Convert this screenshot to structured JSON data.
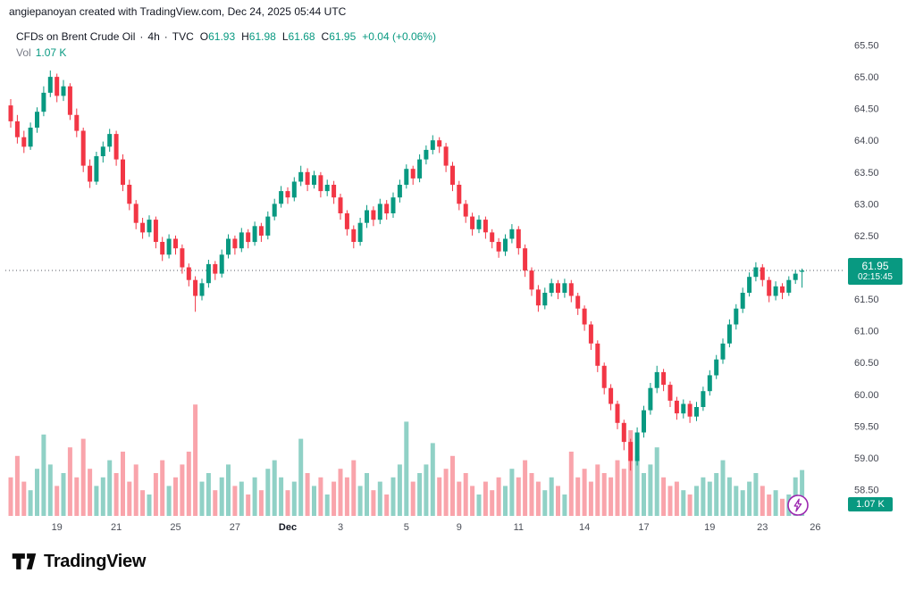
{
  "header": {
    "watermark": "angiepanoyan created with TradingView.com, Dec 24, 2025 05:44 UTC"
  },
  "legend": {
    "symbol": "CFDs on Brent Crude Oil",
    "separator": "·",
    "interval": "4h",
    "exchange": "TVC",
    "ohlc": {
      "o_label": "O",
      "o": "61.93",
      "h_label": "H",
      "h": "61.98",
      "l_label": "L",
      "l": "61.68",
      "c_label": "C",
      "c": "61.95",
      "change": "+0.04 (+0.06%)"
    },
    "vol_label": "Vol",
    "vol_value": "1.07 K"
  },
  "price_badge": {
    "price": "61.95",
    "countdown": "02:15:45"
  },
  "volume_badge": {
    "value": "1.07 K"
  },
  "logo": {
    "text": "TradingView"
  },
  "colors": {
    "up": "#089981",
    "down": "#f23645",
    "vol_up": "rgba(8,153,129,0.45)",
    "vol_down": "rgba(242,54,69,0.45)",
    "badge": "#089981",
    "text_dark": "#131722",
    "text_gray": "#787b86",
    "axis_text": "#434651",
    "accent_purple": "#9c27b0"
  },
  "chart_data": {
    "type": "candlestick",
    "title": "CFDs on Brent Crude Oil · 4h · TVC",
    "symbol": "CFDs on Brent Crude Oil",
    "interval": "4h",
    "exchange": "TVC",
    "last_price": 61.95,
    "ylim": [
      58.5,
      65.5
    ],
    "volume_unit": "K",
    "y_ticks": [
      "65.50",
      "65.00",
      "64.50",
      "64.00",
      "63.50",
      "63.00",
      "62.50",
      "62.00",
      "61.50",
      "61.00",
      "60.50",
      "60.00",
      "59.50",
      "59.00",
      "58.50"
    ],
    "x_ticks": [
      [
        "19",
        7
      ],
      [
        "21",
        16
      ],
      [
        "25",
        25
      ],
      [
        "27",
        34
      ],
      [
        "Dec",
        42
      ],
      [
        "3",
        50
      ],
      [
        "5",
        60
      ],
      [
        "9",
        68
      ],
      [
        "11",
        77
      ],
      [
        "14",
        87
      ],
      [
        "17",
        96
      ],
      [
        "19",
        106
      ],
      [
        "23",
        114
      ],
      [
        "26",
        122
      ]
    ],
    "candles": [
      [
        64.55,
        64.65,
        64.2,
        64.3
      ],
      [
        64.3,
        64.4,
        63.95,
        64.05
      ],
      [
        64.05,
        64.15,
        63.8,
        63.9
      ],
      [
        63.9,
        64.28,
        63.85,
        64.2
      ],
      [
        64.2,
        64.52,
        64.12,
        64.45
      ],
      [
        64.45,
        64.85,
        64.38,
        64.75
      ],
      [
        64.75,
        65.1,
        64.68,
        65.0
      ],
      [
        65.0,
        65.05,
        64.6,
        64.7
      ],
      [
        64.7,
        64.95,
        64.62,
        64.85
      ],
      [
        64.85,
        64.9,
        64.32,
        64.4
      ],
      [
        64.4,
        64.5,
        64.05,
        64.15
      ],
      [
        64.15,
        64.2,
        63.5,
        63.6
      ],
      [
        63.6,
        63.7,
        63.25,
        63.35
      ],
      [
        63.35,
        63.82,
        63.3,
        63.75
      ],
      [
        63.75,
        63.98,
        63.65,
        63.9
      ],
      [
        63.9,
        64.18,
        63.82,
        64.1
      ],
      [
        64.1,
        64.15,
        63.6,
        63.7
      ],
      [
        63.7,
        63.78,
        63.2,
        63.3
      ],
      [
        63.3,
        63.38,
        62.9,
        63.0
      ],
      [
        63.0,
        63.06,
        62.6,
        62.7
      ],
      [
        62.7,
        62.78,
        62.45,
        62.55
      ],
      [
        62.55,
        62.82,
        62.48,
        62.75
      ],
      [
        62.75,
        62.8,
        62.3,
        62.4
      ],
      [
        62.4,
        62.48,
        62.1,
        62.2
      ],
      [
        62.2,
        62.52,
        62.14,
        62.45
      ],
      [
        62.45,
        62.5,
        62.2,
        62.3
      ],
      [
        62.3,
        62.36,
        61.9,
        62.0
      ],
      [
        62.0,
        62.06,
        61.7,
        61.8
      ],
      [
        61.8,
        61.86,
        61.3,
        61.55
      ],
      [
        61.55,
        61.82,
        61.48,
        61.75
      ],
      [
        61.75,
        62.12,
        61.68,
        62.05
      ],
      [
        62.05,
        62.1,
        61.8,
        61.9
      ],
      [
        61.9,
        62.28,
        61.84,
        62.2
      ],
      [
        62.2,
        62.52,
        62.14,
        62.45
      ],
      [
        62.45,
        62.5,
        62.2,
        62.3
      ],
      [
        62.3,
        62.62,
        62.24,
        62.55
      ],
      [
        62.55,
        62.6,
        62.3,
        62.4
      ],
      [
        62.4,
        62.72,
        62.34,
        62.65
      ],
      [
        62.65,
        62.7,
        62.4,
        62.5
      ],
      [
        62.5,
        62.88,
        62.44,
        62.8
      ],
      [
        62.8,
        63.08,
        62.74,
        63.0
      ],
      [
        63.0,
        63.28,
        62.94,
        63.2
      ],
      [
        63.2,
        63.26,
        63.0,
        63.1
      ],
      [
        63.1,
        63.42,
        63.04,
        63.35
      ],
      [
        63.35,
        63.6,
        63.28,
        63.5
      ],
      [
        63.5,
        63.56,
        63.2,
        63.3
      ],
      [
        63.3,
        63.52,
        63.24,
        63.45
      ],
      [
        63.45,
        63.5,
        63.1,
        63.2
      ],
      [
        63.2,
        63.38,
        63.12,
        63.3
      ],
      [
        63.3,
        63.36,
        63.0,
        63.1
      ],
      [
        63.1,
        63.16,
        62.75,
        62.85
      ],
      [
        62.85,
        62.9,
        62.5,
        62.6
      ],
      [
        62.6,
        62.66,
        62.3,
        62.4
      ],
      [
        62.4,
        62.78,
        62.34,
        62.7
      ],
      [
        62.7,
        62.98,
        62.62,
        62.9
      ],
      [
        62.9,
        62.96,
        62.65,
        62.75
      ],
      [
        62.75,
        63.08,
        62.68,
        63.0
      ],
      [
        63.0,
        63.06,
        62.75,
        62.85
      ],
      [
        62.85,
        63.18,
        62.78,
        63.1
      ],
      [
        63.1,
        63.38,
        63.02,
        63.3
      ],
      [
        63.3,
        63.62,
        63.24,
        63.55
      ],
      [
        63.55,
        63.6,
        63.3,
        63.4
      ],
      [
        63.4,
        63.78,
        63.34,
        63.7
      ],
      [
        63.7,
        63.92,
        63.62,
        63.85
      ],
      [
        63.85,
        64.08,
        63.78,
        64.0
      ],
      [
        64.0,
        64.05,
        63.8,
        63.9
      ],
      [
        63.9,
        63.96,
        63.5,
        63.6
      ],
      [
        63.6,
        63.66,
        63.2,
        63.3
      ],
      [
        63.3,
        63.36,
        62.9,
        63.0
      ],
      [
        63.0,
        63.06,
        62.7,
        62.8
      ],
      [
        62.8,
        62.86,
        62.5,
        62.6
      ],
      [
        62.6,
        62.82,
        62.54,
        62.75
      ],
      [
        62.75,
        62.8,
        62.45,
        62.55
      ],
      [
        62.55,
        62.6,
        62.3,
        62.4
      ],
      [
        62.4,
        62.46,
        62.15,
        62.25
      ],
      [
        62.25,
        62.52,
        62.18,
        62.45
      ],
      [
        62.45,
        62.68,
        62.38,
        62.6
      ],
      [
        62.6,
        62.65,
        62.2,
        62.3
      ],
      [
        62.3,
        62.36,
        61.85,
        61.95
      ],
      [
        61.95,
        62.0,
        61.55,
        61.65
      ],
      [
        61.65,
        61.72,
        61.3,
        61.4
      ],
      [
        61.4,
        61.68,
        61.34,
        61.6
      ],
      [
        61.6,
        61.82,
        61.54,
        61.75
      ],
      [
        61.75,
        61.8,
        61.5,
        61.6
      ],
      [
        61.6,
        61.82,
        61.52,
        61.75
      ],
      [
        61.75,
        61.8,
        61.45,
        61.55
      ],
      [
        61.55,
        61.6,
        61.25,
        61.35
      ],
      [
        61.35,
        61.4,
        61.0,
        61.1
      ],
      [
        61.1,
        61.15,
        60.7,
        60.8
      ],
      [
        60.8,
        60.85,
        60.35,
        60.45
      ],
      [
        60.45,
        60.5,
        60.0,
        60.1
      ],
      [
        60.1,
        60.16,
        59.75,
        59.85
      ],
      [
        59.85,
        59.9,
        59.45,
        59.55
      ],
      [
        59.55,
        59.6,
        59.12,
        59.25
      ],
      [
        59.25,
        59.3,
        58.8,
        58.95
      ],
      [
        58.95,
        59.48,
        58.88,
        59.4
      ],
      [
        59.4,
        59.82,
        59.32,
        59.75
      ],
      [
        59.75,
        60.18,
        59.68,
        60.1
      ],
      [
        60.1,
        60.45,
        60.02,
        60.35
      ],
      [
        60.35,
        60.4,
        60.05,
        60.15
      ],
      [
        60.15,
        60.2,
        59.8,
        59.9
      ],
      [
        59.9,
        59.96,
        59.6,
        59.7
      ],
      [
        59.7,
        59.92,
        59.62,
        59.85
      ],
      [
        59.85,
        59.9,
        59.55,
        59.65
      ],
      [
        59.65,
        59.88,
        59.58,
        59.8
      ],
      [
        59.8,
        60.12,
        59.74,
        60.05
      ],
      [
        60.05,
        60.38,
        59.98,
        60.3
      ],
      [
        60.3,
        60.62,
        60.24,
        60.55
      ],
      [
        60.55,
        60.88,
        60.48,
        60.8
      ],
      [
        60.8,
        61.18,
        60.74,
        61.1
      ],
      [
        61.1,
        61.42,
        61.02,
        61.35
      ],
      [
        61.35,
        61.68,
        61.28,
        61.6
      ],
      [
        61.6,
        61.92,
        61.54,
        61.85
      ],
      [
        61.85,
        62.08,
        61.78,
        62.0
      ],
      [
        62.0,
        62.05,
        61.7,
        61.8
      ],
      [
        61.8,
        61.85,
        61.45,
        61.55
      ],
      [
        61.55,
        61.78,
        61.48,
        61.7
      ],
      [
        61.7,
        61.75,
        61.5,
        61.6
      ],
      [
        61.6,
        61.86,
        61.55,
        61.8
      ],
      [
        61.8,
        61.96,
        61.74,
        61.9
      ],
      [
        61.93,
        61.98,
        61.68,
        61.95
      ]
    ],
    "volumes": [
      0.9,
      1.4,
      0.8,
      0.6,
      1.1,
      1.9,
      1.2,
      0.7,
      1.0,
      1.6,
      0.9,
      1.8,
      1.1,
      0.7,
      0.9,
      1.3,
      1.0,
      1.5,
      0.8,
      1.2,
      0.6,
      0.5,
      1.0,
      1.3,
      0.7,
      0.9,
      1.2,
      1.5,
      2.6,
      0.8,
      1.0,
      0.6,
      0.9,
      1.2,
      0.7,
      0.8,
      0.5,
      0.9,
      0.6,
      1.1,
      1.3,
      0.9,
      0.6,
      0.8,
      1.8,
      1.0,
      0.7,
      0.9,
      0.5,
      0.8,
      1.1,
      0.9,
      1.3,
      0.7,
      1.0,
      0.6,
      0.8,
      0.5,
      0.9,
      1.2,
      2.2,
      0.8,
      1.0,
      1.2,
      1.7,
      0.9,
      1.1,
      1.4,
      0.8,
      1.0,
      0.7,
      0.5,
      0.8,
      0.6,
      0.9,
      0.7,
      1.1,
      0.9,
      1.3,
      1.0,
      0.8,
      0.6,
      0.9,
      0.7,
      0.5,
      1.5,
      0.9,
      1.1,
      0.8,
      1.2,
      1.0,
      0.9,
      1.3,
      1.1,
      2.0,
      1.4,
      1.0,
      1.2,
      1.6,
      0.9,
      0.7,
      0.8,
      0.6,
      0.5,
      0.7,
      0.9,
      0.8,
      1.0,
      1.3,
      0.9,
      0.7,
      0.6,
      0.8,
      1.0,
      0.7,
      0.5,
      0.6,
      0.4,
      0.5,
      0.9,
      1.07
    ]
  }
}
